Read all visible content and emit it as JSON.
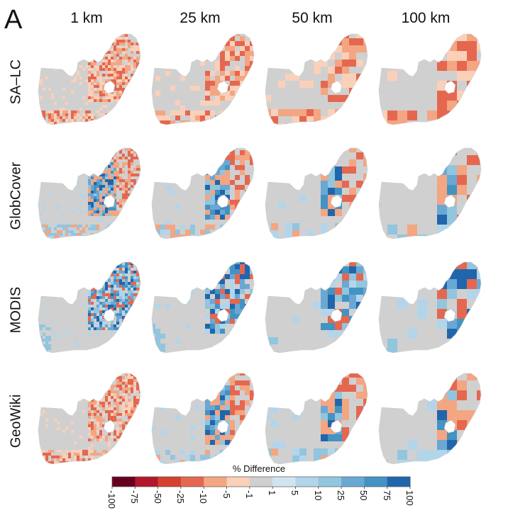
{
  "figure": {
    "panel_letter": "A",
    "columns": [
      "1 km",
      "25 km",
      "50 km",
      "100 km"
    ],
    "rows": [
      "SA–LC",
      "GlobCover",
      "MODIS",
      "GeoWiki"
    ],
    "legend_title": "% Difference"
  },
  "chart_data": {
    "type": "heatmap",
    "title": "",
    "description_scale": "diverging",
    "x_facets": [
      "1 km",
      "25 km",
      "50 km",
      "100 km"
    ],
    "y_facets": [
      "SA–LC",
      "GlobCover",
      "MODIS",
      "GeoWiki"
    ],
    "legend": {
      "title": "% Difference",
      "breaks": [
        "-100",
        "-75",
        "-50",
        "-25",
        "-10",
        "-5",
        "-1",
        "1",
        "5",
        "10",
        "25",
        "50",
        "75",
        "100"
      ],
      "colors": [
        "#67001f",
        "#b2182b",
        "#d6402f",
        "#e5674f",
        "#f4a582",
        "#fbd0b9",
        "#d0d0d0",
        "#d1e5f0",
        "#b3d5ea",
        "#92c5de",
        "#6aa8d4",
        "#4393c3",
        "#2166ac"
      ]
    },
    "panels": [
      {
        "row": "SA–LC",
        "col": "1 km",
        "dominant": "negative"
      },
      {
        "row": "SA–LC",
        "col": "25 km",
        "dominant": "negative"
      },
      {
        "row": "SA–LC",
        "col": "50 km",
        "dominant": "negative"
      },
      {
        "row": "SA–LC",
        "col": "100 km",
        "dominant": "negative"
      },
      {
        "row": "GlobCover",
        "col": "1 km",
        "dominant": "mixed"
      },
      {
        "row": "GlobCover",
        "col": "25 km",
        "dominant": "mixed"
      },
      {
        "row": "GlobCover",
        "col": "50 km",
        "dominant": "mixed"
      },
      {
        "row": "GlobCover",
        "col": "100 km",
        "dominant": "mixed"
      },
      {
        "row": "MODIS",
        "col": "1 km",
        "dominant": "positive"
      },
      {
        "row": "MODIS",
        "col": "25 km",
        "dominant": "positive"
      },
      {
        "row": "MODIS",
        "col": "50 km",
        "dominant": "positive"
      },
      {
        "row": "MODIS",
        "col": "100 km",
        "dominant": "positive"
      },
      {
        "row": "GeoWiki",
        "col": "1 km",
        "dominant": "negative"
      },
      {
        "row": "GeoWiki",
        "col": "25 km",
        "dominant": "mixed"
      },
      {
        "row": "GeoWiki",
        "col": "50 km",
        "dominant": "mixed"
      },
      {
        "row": "GeoWiki",
        "col": "100 km",
        "dominant": "mixed"
      }
    ]
  }
}
